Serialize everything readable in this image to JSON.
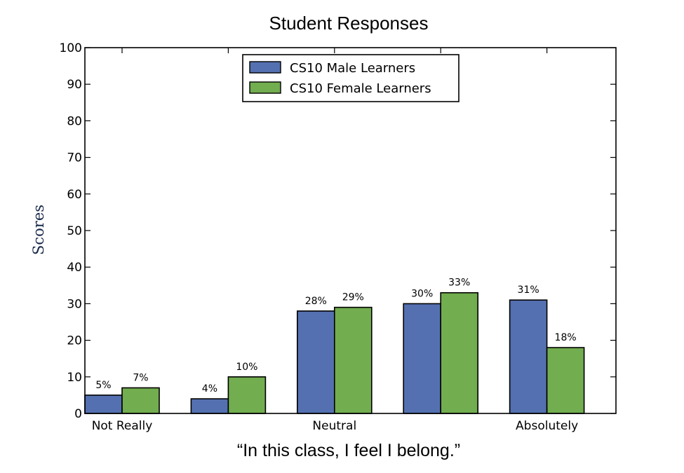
{
  "chart_data": {
    "type": "bar",
    "title": "Student Responses",
    "xlabel": "“In this class, I feel I belong.”",
    "ylabel": "Scores",
    "ylim": [
      0,
      100
    ],
    "yticks": [
      0,
      10,
      20,
      30,
      40,
      50,
      60,
      70,
      80,
      90,
      100
    ],
    "categories": [
      "Not Really",
      "",
      "Neutral",
      "",
      "Absolutely"
    ],
    "series": [
      {
        "name": "CS10 Male Learners",
        "color": "#5470b0",
        "values": [
          5,
          4,
          28,
          30,
          31
        ],
        "labels": [
          "5%",
          "4%",
          "28%",
          "30%",
          "31%"
        ]
      },
      {
        "name": "CS10 Female Learners",
        "color": "#72ad4f",
        "values": [
          7,
          10,
          29,
          33,
          18
        ],
        "labels": [
          "7%",
          "10%",
          "29%",
          "33%",
          "18%"
        ]
      }
    ],
    "legend": "top-center",
    "grid": false
  }
}
